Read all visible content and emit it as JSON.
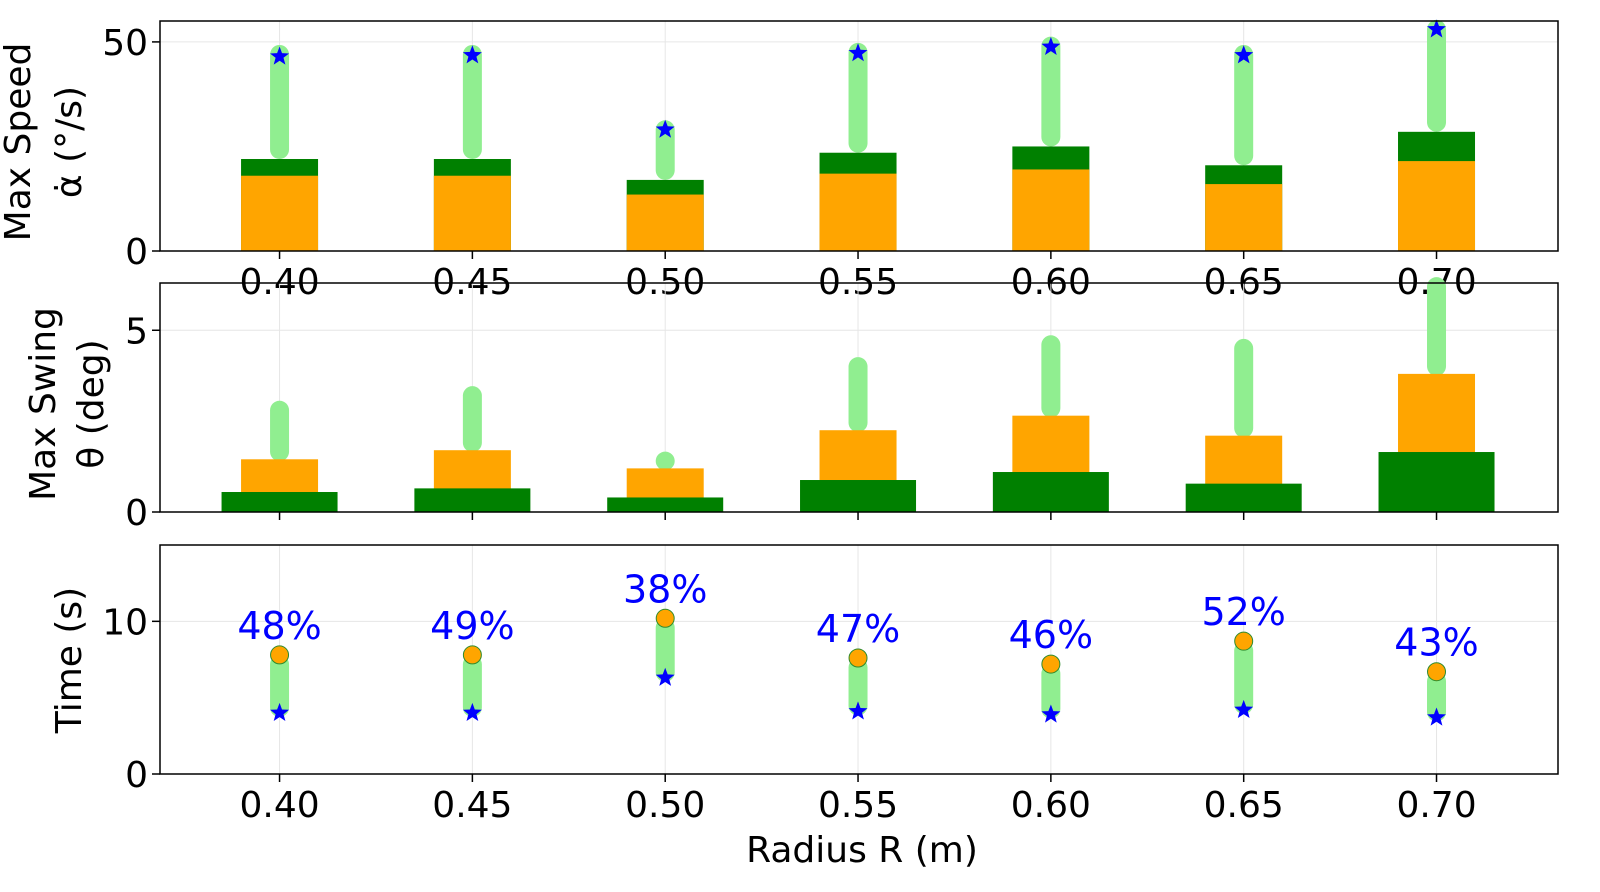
{
  "chart_data": [
    {
      "type": "bar",
      "panel": "top",
      "ylabel_lines": [
        "Max Speed",
        "α̇ (°/s)"
      ],
      "ylim": [
        0,
        55
      ],
      "yticks": [
        "0",
        "50"
      ],
      "yticks_values": [
        0,
        50
      ],
      "grid": true,
      "x": [
        0.4,
        0.45,
        0.5,
        0.55,
        0.6,
        0.65,
        0.7
      ],
      "xticks": [
        "0.40",
        "0.45",
        "0.50",
        "0.55",
        "0.60",
        "0.65",
        "0.70"
      ],
      "series": [
        {
          "color": "#ffa500",
          "values": [
            18.0,
            18.0,
            13.5,
            18.5,
            19.5,
            16.0,
            21.5
          ]
        },
        {
          "color": "#008000",
          "values": [
            22.0,
            22.0,
            17.0,
            23.5,
            25.0,
            20.5,
            28.5
          ]
        },
        {
          "color": "#90ee90",
          "values": [
            47.0,
            47.0,
            29.0,
            47.5,
            49.0,
            47.0,
            53.0
          ]
        }
      ],
      "markers": {
        "color": "#0000ff",
        "symbol": "star",
        "values": [
          46.5,
          46.8,
          29.0,
          47.3,
          48.8,
          46.8,
          53.0
        ]
      }
    },
    {
      "type": "bar",
      "panel": "middle",
      "ylabel_lines": [
        "Max Swing",
        "θ (deg)"
      ],
      "ylim": [
        0,
        6.3
      ],
      "yticks": [
        "0",
        "5"
      ],
      "yticks_values": [
        0,
        5
      ],
      "grid": true,
      "x": [
        0.4,
        0.45,
        0.5,
        0.55,
        0.6,
        0.65,
        0.7
      ],
      "series": [
        {
          "color": "#90ee90",
          "values": [
            2.8,
            3.2,
            1.4,
            4.0,
            4.6,
            4.5,
            6.2
          ]
        },
        {
          "color": "#ffa500",
          "values": [
            1.45,
            1.7,
            1.2,
            2.25,
            2.65,
            2.1,
            3.8
          ]
        },
        {
          "color": "#008000",
          "values": [
            0.55,
            0.65,
            0.4,
            0.88,
            1.1,
            0.78,
            1.65
          ]
        }
      ]
    },
    {
      "type": "scatter",
      "panel": "bottom",
      "ylabel_lines": [
        "Time (s)"
      ],
      "xlabel": "Radius R (m)",
      "ylim": [
        0,
        15
      ],
      "yticks": [
        "0",
        "10"
      ],
      "yticks_values": [
        0,
        10
      ],
      "grid": true,
      "x": [
        0.4,
        0.45,
        0.5,
        0.55,
        0.6,
        0.65,
        0.7
      ],
      "xticks": [
        "0.40",
        "0.45",
        "0.50",
        "0.55",
        "0.60",
        "0.65",
        "0.70"
      ],
      "series": [
        {
          "color": "#ffa500",
          "symbol": "circle",
          "values": [
            7.8,
            7.8,
            10.2,
            7.6,
            7.2,
            8.7,
            6.7
          ]
        },
        {
          "color": "#0000ff",
          "symbol": "star",
          "values": [
            4.0,
            4.0,
            6.3,
            4.1,
            3.9,
            4.2,
            3.7
          ]
        }
      ],
      "range_color": "#90ee90",
      "annotations": [
        "48%",
        "49%",
        "38%",
        "47%",
        "46%",
        "52%",
        "43%"
      ]
    }
  ]
}
